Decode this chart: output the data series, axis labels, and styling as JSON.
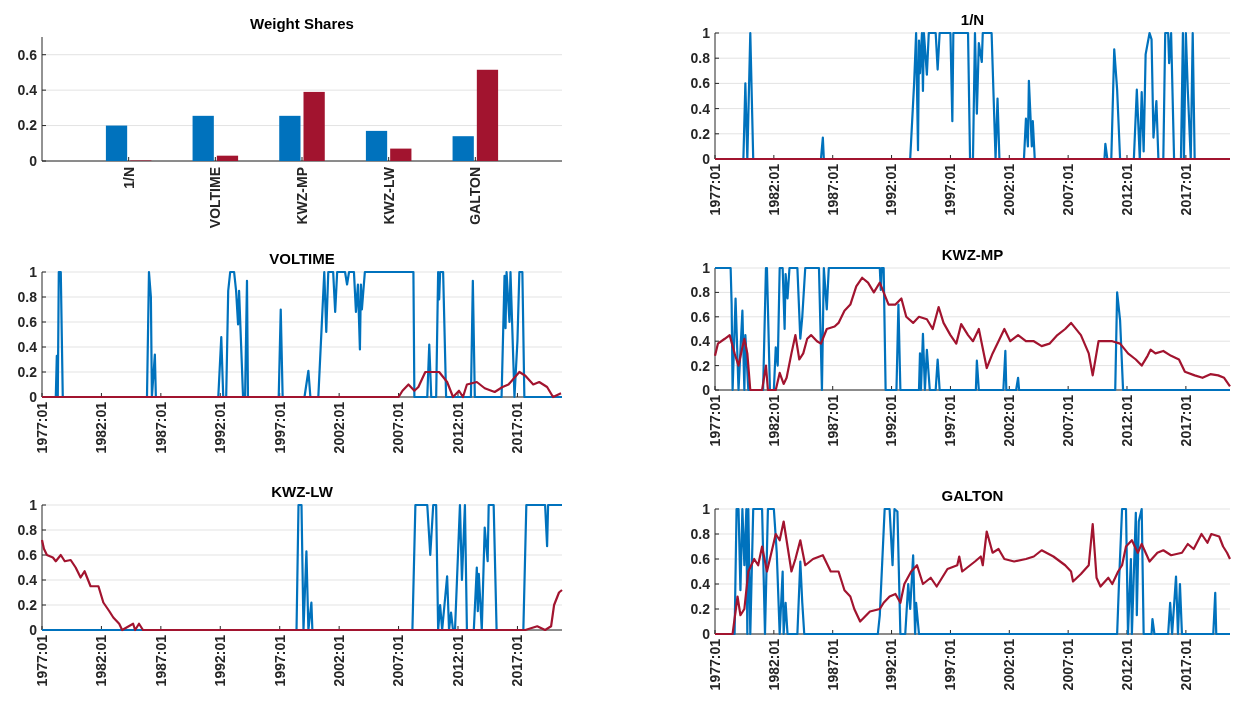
{
  "chart_data": [
    {
      "type": "bar",
      "title": "Weight Shares",
      "categories": [
        "1/N",
        "VOLTIME",
        "KWZ-MP",
        "KWZ-LW",
        "GALTON"
      ],
      "ylim": [
        0,
        0.7
      ],
      "yticks": [
        0,
        0.2,
        0.4,
        0.6
      ],
      "grid": "y",
      "series": [
        {
          "color": "#0072bd",
          "values": [
            0.2,
            0.255,
            0.255,
            0.17,
            0.14
          ]
        },
        {
          "color": "#a2142f",
          "values": [
            0.003,
            0.03,
            0.39,
            0.07,
            0.515
          ]
        }
      ]
    },
    {
      "type": "line",
      "title": "1/N",
      "xlim": [
        "1977-01",
        "2020-10"
      ],
      "xticks": [
        {
          "value": "1977-01",
          "label": "1977:01"
        },
        {
          "value": "1982-01",
          "label": "1982:01"
        },
        {
          "value": "1987-01",
          "label": "1987:01"
        },
        {
          "value": "1992-01",
          "label": "1992:01"
        },
        {
          "value": "1997-01",
          "label": "1997:01"
        },
        {
          "value": "2002-01",
          "label": "2002:01"
        },
        {
          "value": "2007-01",
          "label": "2007:01"
        },
        {
          "value": "2012-01",
          "label": "2012:01"
        },
        {
          "value": "2017-01",
          "label": "2017:01"
        }
      ],
      "ylim": [
        0,
        1
      ],
      "yticks": [
        0,
        0.2,
        0.4,
        0.6,
        0.8,
        1
      ],
      "grid": "y",
      "series": [
        {
          "color": "#0072bd",
          "x": [
            "1977-01",
            "1979-06",
            "1979-08",
            "1979-10",
            "1980-01",
            "1980-04",
            "1986-01",
            "1986-03",
            "1986-04",
            "1993-08",
            "1993-12",
            "1994-02",
            "1994-04",
            "1994-05",
            "1994-06",
            "1994-08",
            "1994-09",
            "1994-10",
            "1995-01",
            "1995-03",
            "1995-10",
            "1995-12",
            "1996-02",
            "1997-01",
            "1997-03",
            "1997-04",
            "1998-07",
            "1998-09",
            "1998-12",
            "1999-02",
            "1999-04",
            "1999-06",
            "1999-09",
            "1999-10",
            "2000-07",
            "2000-11",
            "2001-01",
            "2001-03",
            "2003-04",
            "2003-06",
            "2003-08",
            "2003-09",
            "2003-12",
            "2004-01",
            "2004-03",
            "2010-02",
            "2010-03",
            "2010-05",
            "2010-09",
            "2010-12",
            "2011-03",
            "2011-06",
            "2012-08",
            "2012-11",
            "2013-02",
            "2013-04",
            "2013-06",
            "2013-08",
            "2013-12",
            "2014-02",
            "2014-04",
            "2014-07",
            "2014-09",
            "2015-02",
            "2015-04",
            "2015-07",
            "2015-08",
            "2015-10",
            "2016-01",
            "2016-08",
            "2016-10",
            "2016-11",
            "2017-01",
            "2017-03",
            "2017-06",
            "2017-08",
            "2017-10",
            "2020-10"
          ],
          "values": [
            0,
            0,
            0.6,
            0,
            1,
            0,
            0,
            0.17,
            0,
            0,
            0.6,
            1,
            0.07,
            0.94,
            0.68,
            1,
            0.54,
            1,
            0.67,
            1,
            1,
            0.71,
            1,
            1,
            0.3,
            1,
            1,
            0,
            0,
            1,
            0.36,
            0.92,
            0.77,
            1,
            1,
            0,
            0.48,
            0,
            0,
            0.32,
            0.1,
            0.62,
            0.1,
            0.3,
            0,
            0,
            0.12,
            0,
            0,
            0.87,
            0.55,
            0,
            0,
            0.55,
            0,
            0.53,
            0.06,
            0.83,
            1,
            0.95,
            0.17,
            0.46,
            0,
            0,
            1,
            1,
            0.76,
            1,
            0,
            0,
            1,
            0,
            1,
            0.55,
            0,
            1,
            0,
            0
          ]
        },
        {
          "color": "#a2142f",
          "x": [
            "1977-01",
            "2020-10"
          ],
          "values": [
            0,
            0
          ]
        }
      ]
    },
    {
      "type": "line",
      "title": "VOLTIME",
      "xlim": [
        "1977-01",
        "2020-10"
      ],
      "xticks": [
        {
          "value": "1977-01",
          "label": "1977:01"
        },
        {
          "value": "1982-01",
          "label": "1982:01"
        },
        {
          "value": "1987-01",
          "label": "1987:01"
        },
        {
          "value": "1992-01",
          "label": "1992:01"
        },
        {
          "value": "1997-01",
          "label": "1997:01"
        },
        {
          "value": "2002-01",
          "label": "2002:01"
        },
        {
          "value": "2007-01",
          "label": "2007:01"
        },
        {
          "value": "2012-01",
          "label": "2012:01"
        },
        {
          "value": "2017-01",
          "label": "2017:01"
        }
      ],
      "ylim": [
        0,
        1
      ],
      "yticks": [
        0,
        0.2,
        0.4,
        0.6,
        0.8,
        1
      ],
      "grid": "y",
      "series": [
        {
          "color": "#0072bd",
          "x": [
            "1977-01",
            "1978-03",
            "1978-04",
            "1978-05",
            "1978-06",
            "1978-08",
            "1978-10",
            "1985-11",
            "1986-01",
            "1986-03",
            "1986-04",
            "1986-07",
            "1986-08",
            "1991-11",
            "1992-02",
            "1992-04",
            "1992-07",
            "1992-09",
            "1992-11",
            "1993-03",
            "1993-05",
            "1993-07",
            "1993-08",
            "1993-12",
            "1994-02",
            "1994-04",
            "1994-05",
            "1996-12",
            "1997-02",
            "1997-04",
            "1999-02",
            "1999-06",
            "1999-08",
            "2000-04",
            "2000-10",
            "2000-12",
            "2001-02",
            "2001-07",
            "2001-09",
            "2001-11",
            "2002-07",
            "2002-09",
            "2002-11",
            "2003-04",
            "2003-06",
            "2003-08",
            "2003-10",
            "2003-11",
            "2003-12",
            "2004-03",
            "2008-04",
            "2008-05",
            "2009-06",
            "2009-08",
            "2009-10",
            "2010-03",
            "2010-05",
            "2010-06",
            "2010-07",
            "2010-10",
            "2011-01",
            "2013-02",
            "2013-04",
            "2013-06",
            "2015-09",
            "2015-12",
            "2016-01",
            "2016-02",
            "2016-05",
            "2016-06",
            "2016-09",
            "2016-10",
            "2017-01",
            "2017-03",
            "2017-06",
            "2017-08",
            "2020-10"
          ],
          "values": [
            0,
            0,
            0.33,
            0,
            1,
            1,
            0,
            0,
            1,
            0.8,
            0,
            0.34,
            0,
            0,
            0.48,
            0,
            0,
            0.85,
            1,
            1,
            0.85,
            0.58,
            0.85,
            0,
            0,
            0.93,
            0,
            0,
            0.7,
            0,
            0,
            0.21,
            0,
            0,
            1,
            0.52,
            1,
            1,
            0.68,
            1,
            1,
            0.9,
            1,
            1,
            0.68,
            0.9,
            0.38,
            0.9,
            0.7,
            1,
            1,
            0,
            0,
            0.42,
            0,
            0,
            1,
            0.78,
            1,
            1,
            0,
            0,
            0.93,
            0,
            0,
            0.97,
            0.55,
            1,
            0.6,
            1,
            0.25,
            0,
            0.45,
            1,
            1,
            0,
            0
          ]
        },
        {
          "color": "#a2142f",
          "x": [
            "1977-01",
            "2007-01",
            "2007-05",
            "2007-11",
            "2008-05",
            "2008-09",
            "2009-04",
            "2010-06",
            "2011-02",
            "2011-08",
            "2012-02",
            "2012-06",
            "2012-10",
            "2013-08",
            "2014-04",
            "2015-02",
            "2015-10",
            "2016-04",
            "2017-03",
            "2017-09",
            "2018-05",
            "2018-11",
            "2019-07",
            "2020-01",
            "2020-09"
          ],
          "values": [
            0,
            0,
            0.05,
            0.1,
            0.05,
            0.08,
            0.2,
            0.2,
            0.12,
            0,
            0.05,
            0,
            0.1,
            0.12,
            0.07,
            0.04,
            0.08,
            0.1,
            0.2,
            0.17,
            0.1,
            0.12,
            0.08,
            0,
            0.03
          ]
        }
      ]
    },
    {
      "type": "line",
      "title": "KWZ-MP",
      "xlim": [
        "1977-01",
        "2020-10"
      ],
      "xticks": [
        {
          "value": "1977-01",
          "label": "1977:01"
        },
        {
          "value": "1982-01",
          "label": "1982:01"
        },
        {
          "value": "1987-01",
          "label": "1987:01"
        },
        {
          "value": "1992-01",
          "label": "1992:01"
        },
        {
          "value": "1997-01",
          "label": "1997:01"
        },
        {
          "value": "2002-01",
          "label": "2002:01"
        },
        {
          "value": "2007-01",
          "label": "2007:01"
        },
        {
          "value": "2012-01",
          "label": "2012:01"
        },
        {
          "value": "2017-01",
          "label": "2017:01"
        }
      ],
      "ylim": [
        0,
        1
      ],
      "yticks": [
        0,
        0.2,
        0.4,
        0.6,
        0.8,
        1
      ],
      "grid": "y",
      "series": [
        {
          "color": "#0072bd",
          "x": [
            "1977-01",
            "1978-05",
            "1978-06",
            "1978-07",
            "1978-10",
            "1979-01",
            "1979-05",
            "1979-07",
            "1979-08",
            "1979-09",
            "1979-11",
            "1981-02",
            "1981-05",
            "1981-06",
            "1981-09",
            "1982-01",
            "1982-03",
            "1982-05",
            "1982-07",
            "1982-10",
            "1982-12",
            "1983-01",
            "1983-03",
            "1983-05",
            "1984-01",
            "1984-04",
            "1984-06",
            "1984-09",
            "1985-11",
            "1986-02",
            "1986-04",
            "1986-07",
            "1986-09",
            "1991-01",
            "1991-02",
            "1991-03",
            "1991-05",
            "1991-07",
            "1992-06",
            "1992-08",
            "1992-10",
            "1994-05",
            "1994-06",
            "1994-07",
            "1994-09",
            "1994-11",
            "1995-01",
            "1995-04",
            "1995-10",
            "1995-12",
            "1996-02",
            "1999-03",
            "1999-04",
            "1999-06",
            "2001-07",
            "2001-09",
            "2001-10",
            "2002-08",
            "2002-10",
            "2002-11",
            "2011-01",
            "2011-03",
            "2011-06",
            "2011-09",
            "2020-10"
          ],
          "values": [
            1,
            1,
            0.7,
            0,
            0.75,
            0,
            0.65,
            0,
            0.45,
            0.3,
            0,
            0,
            1,
            1,
            0,
            0,
            0.35,
            0.2,
            1,
            1,
            0.5,
            0.95,
            0.75,
            1,
            1,
            0.42,
            0.6,
            1,
            1,
            0,
            1,
            0.66,
            1,
            1,
            0.82,
            1,
            1,
            0,
            0,
            0.7,
            0,
            0,
            0.3,
            0,
            0.46,
            0,
            0.33,
            0,
            0,
            0.25,
            0,
            0,
            0.24,
            0,
            0,
            0.32,
            0,
            0,
            0.1,
            0,
            0,
            0.8,
            0.57,
            0,
            0
          ]
        },
        {
          "color": "#a2142f",
          "x": [
            "1977-01",
            "1977-04",
            "1977-11",
            "1978-04",
            "1978-09",
            "1979-01",
            "1979-05",
            "1979-07",
            "1979-10",
            "1980-01",
            "1981-01",
            "1981-05",
            "1981-07",
            "1982-03",
            "1982-07",
            "1982-11",
            "1983-02",
            "1983-07",
            "1983-11",
            "1984-03",
            "1984-07",
            "1984-11",
            "1985-03",
            "1985-09",
            "1986-01",
            "1986-07",
            "1987-03",
            "1987-07",
            "1988-01",
            "1988-07",
            "1989-01",
            "1989-07",
            "1990-01",
            "1990-07",
            "1991-01",
            "1991-05",
            "1991-10",
            "1992-05",
            "1992-11",
            "1993-04",
            "1993-11",
            "1994-05",
            "1995-01",
            "1995-07",
            "1996-01",
            "1996-06",
            "1997-01",
            "1997-07",
            "1997-12",
            "1998-07",
            "1998-12",
            "1999-06",
            "2000-02",
            "2000-08",
            "2001-02",
            "2001-08",
            "2002-02",
            "2002-10",
            "2003-06",
            "2004-02",
            "2004-10",
            "2005-06",
            "2006-02",
            "2006-10",
            "2007-04",
            "2008-02",
            "2008-10",
            "2009-02",
            "2009-08",
            "2010-10",
            "2011-06",
            "2012-02",
            "2012-10",
            "2013-04",
            "2013-10",
            "2014-01",
            "2014-06",
            "2015-02",
            "2015-10",
            "2016-06",
            "2016-12",
            "2017-10",
            "2018-06",
            "2019-02",
            "2019-10",
            "2020-04",
            "2020-10"
          ],
          "values": [
            0.28,
            0.38,
            0.42,
            0.45,
            0.3,
            0.2,
            0.35,
            0.42,
            0.3,
            0,
            0,
            0.2,
            0,
            0,
            0.14,
            0.05,
            0.1,
            0.3,
            0.45,
            0.25,
            0.3,
            0.42,
            0.45,
            0.4,
            0.38,
            0.5,
            0.52,
            0.55,
            0.65,
            0.7,
            0.85,
            0.92,
            0.88,
            0.8,
            0.88,
            0.8,
            0.7,
            0.7,
            0.75,
            0.6,
            0.55,
            0.6,
            0.58,
            0.5,
            0.68,
            0.55,
            0.45,
            0.38,
            0.54,
            0.45,
            0.4,
            0.5,
            0.18,
            0.3,
            0.4,
            0.5,
            0.4,
            0.45,
            0.4,
            0.4,
            0.36,
            0.38,
            0.45,
            0.5,
            0.55,
            0.45,
            0.3,
            0.12,
            0.4,
            0.4,
            0.38,
            0.3,
            0.25,
            0.2,
            0.28,
            0.33,
            0.3,
            0.32,
            0.28,
            0.25,
            0.15,
            0.12,
            0.1,
            0.13,
            0.12,
            0.1,
            0.03
          ]
        }
      ]
    },
    {
      "type": "line",
      "title": "KWZ-LW",
      "xlim": [
        "1977-01",
        "2020-10"
      ],
      "xticks": [
        {
          "value": "1977-01",
          "label": "1977:01"
        },
        {
          "value": "1982-01",
          "label": "1982:01"
        },
        {
          "value": "1987-01",
          "label": "1987:01"
        },
        {
          "value": "1992-01",
          "label": "1992:01"
        },
        {
          "value": "1997-01",
          "label": "1997:01"
        },
        {
          "value": "2002-01",
          "label": "2002:01"
        },
        {
          "value": "2007-01",
          "label": "2007:01"
        },
        {
          "value": "2012-01",
          "label": "2012:01"
        },
        {
          "value": "2017-01",
          "label": "2017:01"
        }
      ],
      "ylim": [
        0,
        1
      ],
      "yticks": [
        0,
        0.2,
        0.4,
        0.6,
        0.8,
        1
      ],
      "grid": "y",
      "series": [
        {
          "color": "#0072bd",
          "x": [
            "1977-01",
            "1998-06",
            "1998-08",
            "1998-11",
            "1999-01",
            "1999-04",
            "1999-06",
            "1999-09",
            "1999-10",
            "2008-03",
            "2008-06",
            "2009-06",
            "2009-09",
            "2009-12",
            "2010-03",
            "2010-05",
            "2010-07",
            "2010-09",
            "2011-02",
            "2011-04",
            "2011-06",
            "2011-08",
            "2011-10",
            "2012-03",
            "2012-05",
            "2012-08",
            "2012-10",
            "2013-05",
            "2013-08",
            "2013-09",
            "2013-10",
            "2014-01",
            "2014-04",
            "2014-07",
            "2014-08",
            "2015-01",
            "2015-04",
            "2017-07",
            "2017-10",
            "2019-05",
            "2019-07",
            "2019-08",
            "2020-10"
          ],
          "values": [
            0,
            0,
            1,
            1,
            0,
            0.63,
            0,
            0.22,
            0,
            0,
            1,
            1,
            0.6,
            1,
            1,
            0,
            0.2,
            0,
            0.43,
            0,
            0.14,
            0,
            0,
            1,
            0.4,
            1,
            0,
            0,
            0.5,
            0.15,
            0.45,
            0,
            0.82,
            0.55,
            1,
            1,
            0,
            0,
            1,
            1,
            0.67,
            1,
            1
          ]
        },
        {
          "color": "#a2142f",
          "x": [
            "1977-01",
            "1977-03",
            "1977-06",
            "1977-12",
            "1978-03",
            "1978-08",
            "1978-12",
            "1979-06",
            "1979-11",
            "1980-04",
            "1980-08",
            "1981-02",
            "1981-10",
            "1982-03",
            "1982-09",
            "1983-01",
            "1983-07",
            "1983-10",
            "1984-09",
            "1984-11",
            "1985-03",
            "1985-07",
            "2017-09",
            "2018-09",
            "2019-05",
            "2019-11",
            "2020-02",
            "2020-07",
            "2020-10"
          ],
          "values": [
            0.72,
            0.65,
            0.6,
            0.58,
            0.55,
            0.6,
            0.55,
            0.56,
            0.5,
            0.42,
            0.47,
            0.35,
            0.35,
            0.22,
            0.15,
            0.1,
            0.05,
            0,
            0.05,
            0,
            0.05,
            0,
            0,
            0.03,
            0,
            0.03,
            0.2,
            0.3,
            0.32
          ]
        }
      ]
    },
    {
      "type": "line",
      "title": "GALTON",
      "xlim": [
        "1977-01",
        "2020-10"
      ],
      "xticks": [
        {
          "value": "1977-01",
          "label": "1977:01"
        },
        {
          "value": "1982-01",
          "label": "1982:01"
        },
        {
          "value": "1987-01",
          "label": "1987:01"
        },
        {
          "value": "1992-01",
          "label": "1992:01"
        },
        {
          "value": "1997-01",
          "label": "1997:01"
        },
        {
          "value": "2002-01",
          "label": "2002:01"
        },
        {
          "value": "2007-01",
          "label": "2007:01"
        },
        {
          "value": "2012-01",
          "label": "2012:01"
        },
        {
          "value": "2017-01",
          "label": "2017:01"
        }
      ],
      "ylim": [
        0,
        1
      ],
      "yticks": [
        0,
        0.2,
        0.4,
        0.6,
        0.8,
        1
      ],
      "grid": "y",
      "series": [
        {
          "color": "#0072bd",
          "x": [
            "1977-01",
            "1978-09",
            "1978-11",
            "1979-01",
            "1979-03",
            "1979-05",
            "1979-07",
            "1979-09",
            "1979-10",
            "1979-11",
            "1980-01",
            "1980-04",
            "1981-01",
            "1981-04",
            "1981-07",
            "1982-01",
            "1982-04",
            "1982-07",
            "1982-10",
            "1982-11",
            "1983-01",
            "1983-03",
            "1984-01",
            "1984-04",
            "1984-06",
            "1984-08",
            "1990-11",
            "1991-01",
            "1991-06",
            "1991-11",
            "1992-02",
            "1992-04",
            "1992-07",
            "1992-10",
            "1993-03",
            "1993-06",
            "1993-08",
            "1993-11",
            "1994-01",
            "1994-02",
            "1994-05",
            "2011-03",
            "2011-05",
            "2011-08",
            "2011-12",
            "2012-02",
            "2012-05",
            "2012-06",
            "2012-10",
            "2012-11",
            "2013-01",
            "2013-04",
            "2013-06",
            "2014-02",
            "2014-03",
            "2014-05",
            "2015-07",
            "2015-09",
            "2015-11",
            "2016-03",
            "2016-05",
            "2016-07",
            "2016-09",
            "2019-05",
            "2019-07",
            "2019-08",
            "2020-10"
          ],
          "values": [
            0,
            0,
            1,
            1,
            0.35,
            1,
            0.55,
            1,
            0,
            1,
            0,
            1,
            1,
            0,
            1,
            1,
            0.65,
            0,
            0.5,
            0,
            0.25,
            0,
            0,
            0.58,
            0.25,
            0,
            0,
            0.15,
            1,
            1,
            0.55,
            1,
            0.98,
            0,
            0,
            0.4,
            0.2,
            0.63,
            0,
            0.25,
            0,
            0,
            0.43,
            1,
            1,
            0,
            0.6,
            0,
            0.97,
            0.15,
            0.9,
            1,
            0,
            0,
            0.12,
            0,
            0,
            0.25,
            0,
            0.46,
            0,
            0.4,
            0,
            0,
            0.33,
            0,
            0
          ]
        },
        {
          "color": "#a2142f",
          "x": [
            "1977-01",
            "1978-07",
            "1978-12",
            "1979-03",
            "1979-07",
            "1979-11",
            "1980-05",
            "1980-09",
            "1981-01",
            "1981-06",
            "1982-03",
            "1982-07",
            "1982-11",
            "1983-07",
            "1983-11",
            "1984-04",
            "1984-09",
            "1985-05",
            "1986-03",
            "1986-11",
            "1987-07",
            "1988-01",
            "1988-07",
            "1988-11",
            "1989-05",
            "1990-03",
            "1991-01",
            "1991-05",
            "1991-11",
            "1992-05",
            "1992-10",
            "1993-02",
            "1993-09",
            "1994-03",
            "1994-09",
            "1995-05",
            "1995-11",
            "1996-10",
            "1997-08",
            "1997-10",
            "1998-01",
            "1999-02",
            "1999-08",
            "1999-10",
            "2000-02",
            "2000-08",
            "2001-02",
            "2001-08",
            "2002-06",
            "2003-06",
            "2004-02",
            "2004-10",
            "2005-10",
            "2006-10",
            "2007-04",
            "2007-06",
            "2008-02",
            "2008-10",
            "2009-02",
            "2009-06",
            "2009-10",
            "2010-06",
            "2010-10",
            "2011-04",
            "2011-08",
            "2011-12",
            "2012-06",
            "2012-12",
            "2013-04",
            "2013-12",
            "2014-08",
            "2015-02",
            "2015-10",
            "2016-09",
            "2017-03",
            "2017-09",
            "2018-05",
            "2018-11",
            "2019-03",
            "2019-11",
            "2020-03",
            "2020-07",
            "2020-10"
          ],
          "values": [
            0,
            0,
            0.3,
            0.15,
            0.2,
            0.5,
            0.6,
            0.55,
            0.7,
            0.5,
            0.8,
            0.75,
            0.9,
            0.5,
            0.6,
            0.75,
            0.55,
            0.6,
            0.63,
            0.5,
            0.5,
            0.35,
            0.3,
            0.2,
            0.1,
            0.18,
            0.2,
            0.25,
            0.3,
            0.32,
            0.25,
            0.4,
            0.5,
            0.55,
            0.4,
            0.45,
            0.38,
            0.52,
            0.55,
            0.62,
            0.5,
            0.58,
            0.62,
            0.55,
            0.82,
            0.65,
            0.68,
            0.6,
            0.58,
            0.6,
            0.62,
            0.67,
            0.62,
            0.55,
            0.5,
            0.42,
            0.48,
            0.55,
            0.88,
            0.45,
            0.38,
            0.45,
            0.4,
            0.5,
            0.55,
            0.7,
            0.75,
            0.65,
            0.72,
            0.58,
            0.65,
            0.67,
            0.63,
            0.65,
            0.72,
            0.68,
            0.8,
            0.73,
            0.8,
            0.78,
            0.7,
            0.65,
            0.6
          ]
        }
      ]
    }
  ]
}
